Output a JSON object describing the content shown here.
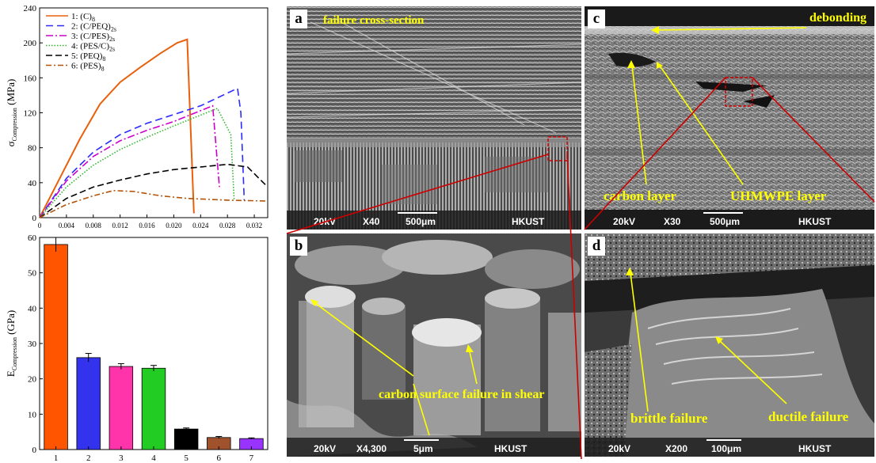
{
  "colors": {
    "c1": "#e8600c",
    "c2": "#2b2bff",
    "c3": "#cc00cc",
    "c4": "#2fb82f",
    "c5": "#000000",
    "c6": "#b45309",
    "b1": "#ff5500",
    "b2": "#3333ee",
    "b3": "#ff33aa",
    "b4": "#22cc22",
    "b5": "#000000",
    "b6": "#a0522d",
    "b7": "#9933ff",
    "annotation": "#ffff00",
    "zoom_line": "#cc0000"
  },
  "chart_data": [
    {
      "type": "line",
      "ylabel_main": "σ",
      "ylabel_sub": "Compression",
      "ylabel_unit": " (MPa)",
      "ylim": [
        0,
        240
      ],
      "xlim": [
        0,
        0.034
      ],
      "yticks": [
        "0",
        "40",
        "80",
        "120",
        "160",
        "200",
        "240"
      ],
      "xticks": [
        "0",
        "0.004",
        "0.008",
        "0.012",
        "0.016",
        "0.020",
        "0.024",
        "0.028",
        "0.032"
      ],
      "legend_position": "top-left",
      "series": [
        {
          "num": "1: ",
          "base": "(C)",
          "sub": "8",
          "color_key": "c1",
          "dash": "",
          "x": [
            0,
            0.003,
            0.006,
            0.009,
            0.012,
            0.015,
            0.018,
            0.0205,
            0.022,
            0.023
          ],
          "y": [
            0,
            45,
            90,
            130,
            155,
            172,
            188,
            200,
            204,
            5
          ]
        },
        {
          "num": "2: ",
          "base": "(C/PEQ)",
          "sub": "2s",
          "color_key": "c2",
          "dash": "9,5",
          "x": [
            0,
            0.004,
            0.008,
            0.012,
            0.016,
            0.02,
            0.024,
            0.0295,
            0.03,
            0.0305
          ],
          "y": [
            0,
            45,
            75,
            95,
            108,
            118,
            128,
            148,
            120,
            20
          ]
        },
        {
          "num": "3: ",
          "base": "(C/PES)",
          "sub": "2s",
          "color_key": "c3",
          "dash": "9,3,2,3",
          "x": [
            0,
            0.004,
            0.008,
            0.012,
            0.016,
            0.02,
            0.0258,
            0.0268
          ],
          "y": [
            0,
            42,
            70,
            88,
            100,
            110,
            128,
            35
          ]
        },
        {
          "num": "4: ",
          "base": "(PES/C)",
          "sub": "2s",
          "color_key": "c4",
          "dash": "1.5,2",
          "x": [
            0,
            0.004,
            0.008,
            0.012,
            0.016,
            0.02,
            0.0265,
            0.0285,
            0.029
          ],
          "y": [
            0,
            35,
            60,
            78,
            92,
            105,
            125,
            95,
            20
          ]
        },
        {
          "num": "5: ",
          "base": "(PEQ)",
          "sub": "8",
          "color_key": "c5",
          "dash": "8,4",
          "x": [
            0,
            0.004,
            0.008,
            0.012,
            0.016,
            0.02,
            0.024,
            0.028,
            0.031,
            0.034
          ],
          "y": [
            0,
            22,
            35,
            43,
            50,
            55,
            58,
            61,
            58,
            35
          ]
        },
        {
          "num": "6: ",
          "base": "(PES)",
          "sub": "8",
          "color_key": "c6",
          "dash": "7,3,2,3",
          "x": [
            0,
            0.004,
            0.008,
            0.011,
            0.014,
            0.018,
            0.022,
            0.028,
            0.034
          ],
          "y": [
            0,
            15,
            25,
            31,
            30,
            25,
            22,
            20,
            19
          ]
        }
      ]
    },
    {
      "type": "bar",
      "ylabel_main": "E",
      "ylabel_sub": "Compression",
      "ylabel_unit": " (GPa)",
      "ylim": [
        0,
        60
      ],
      "yticks": [
        "0",
        "10",
        "20",
        "30",
        "40",
        "50",
        "60"
      ],
      "categories": [
        "1",
        "2",
        "3",
        "4",
        "5",
        "6",
        "7"
      ],
      "values": [
        58,
        26,
        23.5,
        23,
        5.8,
        3.4,
        3.1
      ],
      "errors": [
        2,
        1.2,
        0.8,
        0.8,
        0.3,
        0.3,
        0.2
      ],
      "color_keys": [
        "b1",
        "b2",
        "b3",
        "b4",
        "b5",
        "b6",
        "b7"
      ]
    }
  ],
  "micrographs": {
    "a": {
      "label": "a",
      "annotations": [
        "failure cross-section"
      ],
      "info": {
        "kv": "20kV",
        "mag": "X40",
        "scale": "500μm",
        "org": "HKUST"
      }
    },
    "b": {
      "label": "b",
      "annotations": [
        "carbon surface failure in shear"
      ],
      "info": {
        "kv": "20kV",
        "mag": "X4,300",
        "scale": "5μm",
        "org": "HKUST"
      }
    },
    "c": {
      "label": "c",
      "annotations": [
        "debonding",
        "carbon layer",
        "UHMWPE layer"
      ],
      "info": {
        "kv": "20kV",
        "mag": "X30",
        "scale": "500μm",
        "org": "HKUST"
      }
    },
    "d": {
      "label": "d",
      "annotations": [
        "brittle failure",
        "ductile failure"
      ],
      "info": {
        "kv": "20kV",
        "mag": "X200",
        "scale": "100μm",
        "org": "HKUST"
      }
    }
  }
}
